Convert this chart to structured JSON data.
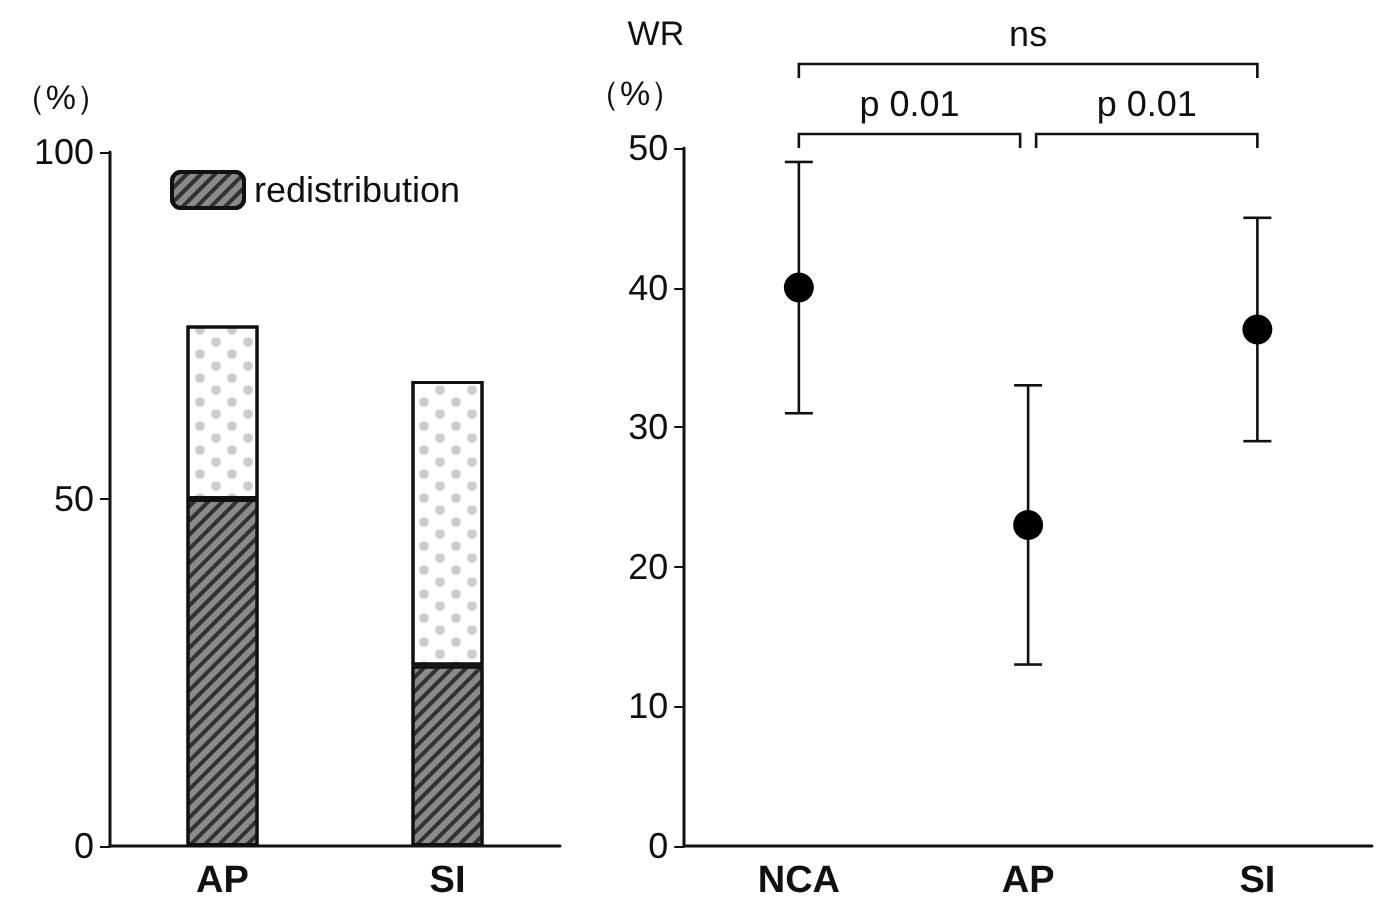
{
  "chart_data": [
    {
      "type": "bar",
      "ylabel": "（%）",
      "categories": [
        "AP",
        "SI"
      ],
      "stacked": true,
      "legend": "top left",
      "grid": false,
      "ylim": [
        0,
        100
      ],
      "yticks": [
        0,
        50,
        100
      ],
      "series": [
        {
          "name": "redistribution",
          "color": "#8a8a8a",
          "values": [
            50,
            26
          ]
        },
        {
          "color": "#ffffff",
          "values": [
            25,
            41
          ]
        }
      ]
    },
    {
      "type": "scatter",
      "ylabel": "WR\n（%）",
      "categories": [
        "NCA",
        "AP",
        "SI"
      ],
      "values": [
        40,
        23,
        37
      ],
      "errors": [
        [
          31,
          49
        ],
        [
          13,
          33
        ],
        [
          29,
          45
        ]
      ],
      "color": "#000000",
      "marker": "circle",
      "legend": false,
      "grid": false,
      "ylim": [
        0,
        50
      ],
      "yticks": [
        0,
        10,
        20,
        30,
        40,
        50
      ],
      "annotations": [
        "p 0.01",
        "p 0.01",
        "ns"
      ]
    }
  ]
}
